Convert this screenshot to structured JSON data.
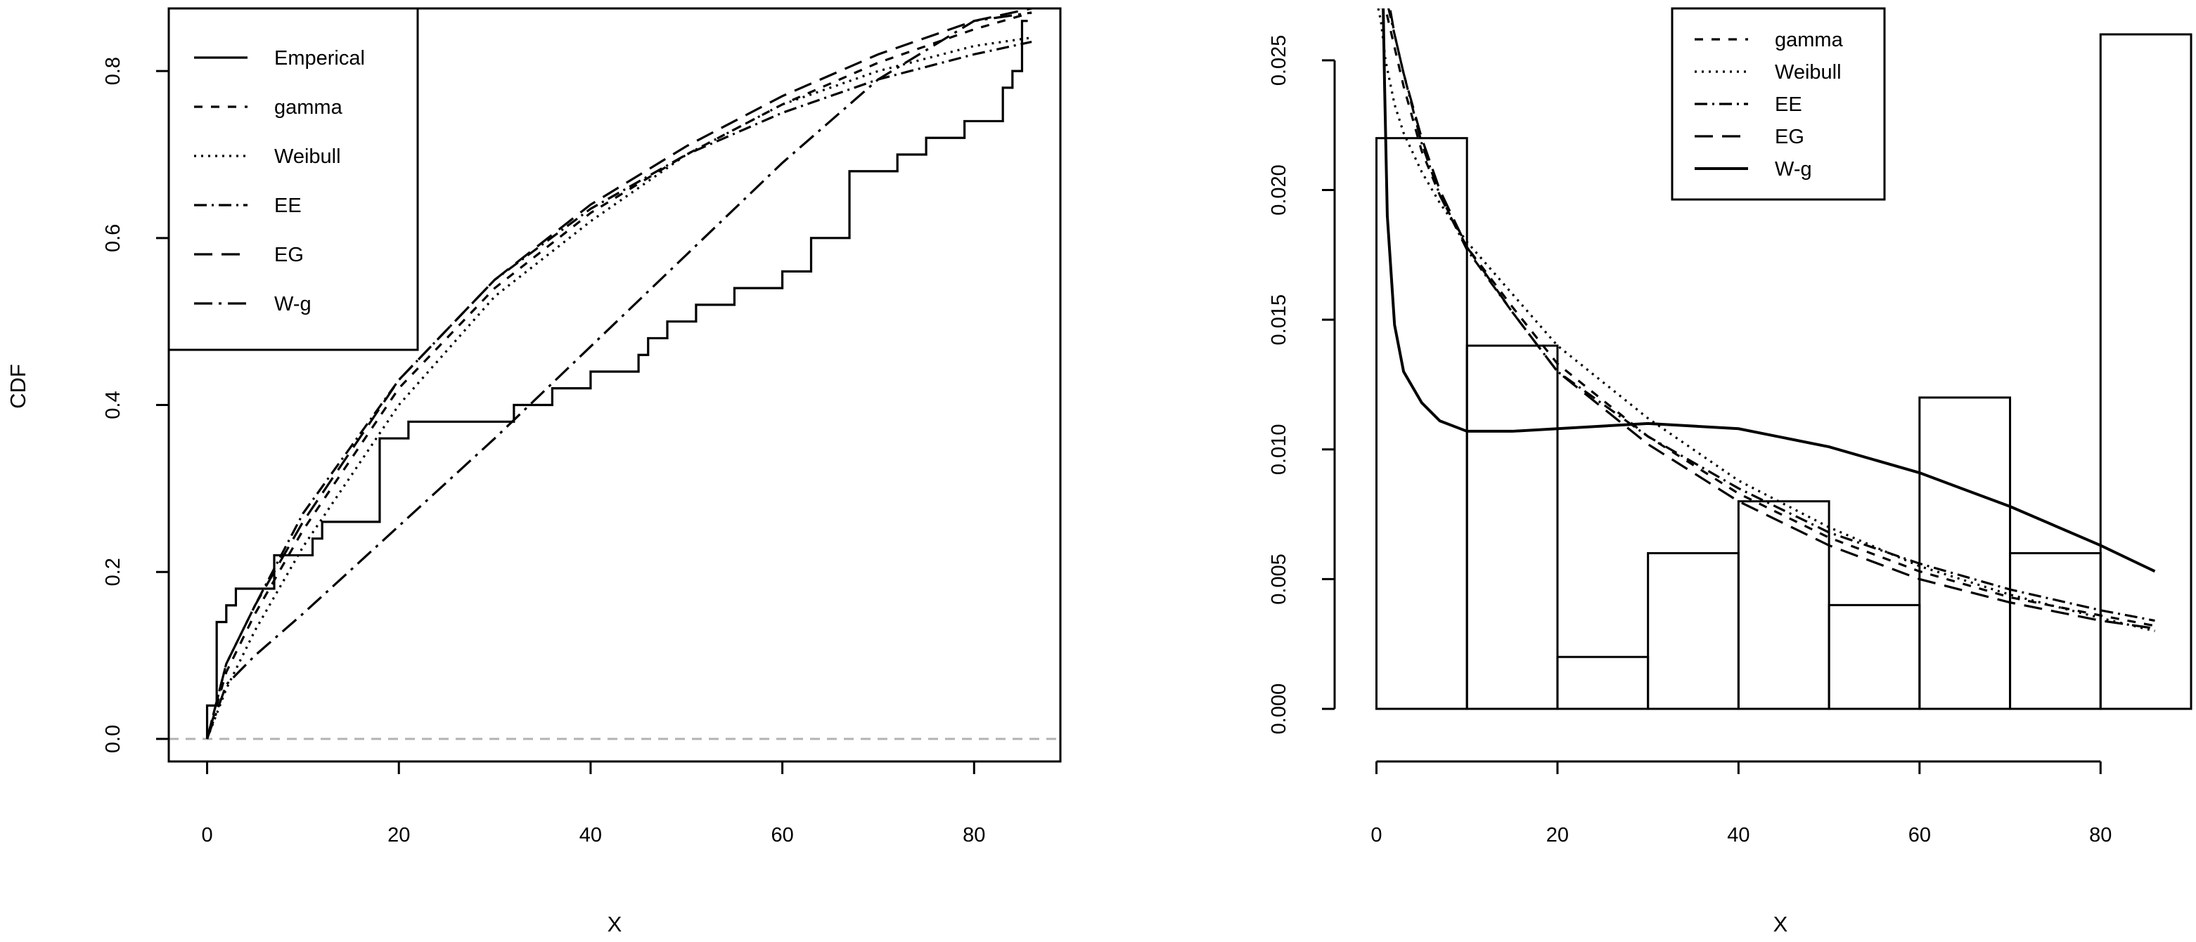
{
  "chart_data": [
    {
      "type": "line",
      "title": "",
      "xlabel": "X",
      "ylabel": "CDF",
      "xlim": [
        -4,
        89
      ],
      "ylim": [
        -0.027,
        0.875
      ],
      "xticks": [
        0,
        20,
        40,
        60,
        80
      ],
      "yticks": [
        0.0,
        0.2,
        0.4,
        0.6,
        0.8
      ],
      "xtick_labels": [
        "0",
        "20",
        "40",
        "60",
        "80"
      ],
      "ytick_labels": [
        "0.0",
        "0.2",
        "0.4",
        "0.6",
        "0.8"
      ],
      "grid": false,
      "legend_position": "top-left",
      "reference_line": {
        "y": 0,
        "style": "dashed",
        "color": "#b3b3b3"
      },
      "series": [
        {
          "name": "Emperical",
          "style": "step",
          "dash": "",
          "x": [
            0,
            1,
            2,
            3,
            7,
            11,
            12,
            18,
            21,
            32,
            36,
            40,
            45,
            46,
            48,
            51,
            55,
            60,
            63,
            67,
            72,
            75,
            79,
            83,
            84,
            85
          ],
          "y": [
            0.04,
            0.14,
            0.16,
            0.18,
            0.22,
            0.24,
            0.26,
            0.36,
            0.38,
            0.4,
            0.42,
            0.44,
            0.46,
            0.48,
            0.5,
            0.52,
            0.54,
            0.56,
            0.6,
            0.68,
            0.7,
            0.72,
            0.74,
            0.78,
            0.8,
            0.86
          ]
        },
        {
          "name": "gamma",
          "style": "line",
          "dash": "12 12",
          "x": [
            0,
            2,
            5,
            10,
            20,
            30,
            40,
            50,
            60,
            70,
            80,
            86
          ],
          "y": [
            0,
            0.08,
            0.15,
            0.25,
            0.42,
            0.54,
            0.63,
            0.7,
            0.76,
            0.81,
            0.85,
            0.87
          ]
        },
        {
          "name": "Weibull",
          "style": "line",
          "dash": "3 7",
          "x": [
            0,
            2,
            5,
            10,
            20,
            30,
            40,
            50,
            60,
            70,
            80,
            86
          ],
          "y": [
            0,
            0.06,
            0.13,
            0.23,
            0.4,
            0.53,
            0.62,
            0.7,
            0.76,
            0.8,
            0.83,
            0.84
          ]
        },
        {
          "name": "EE",
          "style": "line",
          "dash": "18 7 3 7",
          "x": [
            0,
            2,
            5,
            10,
            20,
            30,
            40,
            50,
            60,
            70,
            80,
            86
          ],
          "y": [
            0,
            0.09,
            0.16,
            0.27,
            0.43,
            0.55,
            0.635,
            0.7,
            0.75,
            0.79,
            0.82,
            0.835
          ]
        },
        {
          "name": "EG",
          "style": "line",
          "dash": "26 13",
          "x": [
            0,
            2,
            5,
            10,
            20,
            30,
            40,
            50,
            60,
            70,
            80,
            86
          ],
          "y": [
            0,
            0.09,
            0.16,
            0.26,
            0.43,
            0.55,
            0.64,
            0.71,
            0.77,
            0.82,
            0.86,
            0.875
          ]
        },
        {
          "name": "W-g",
          "style": "line",
          "dash": "26 9 4 9",
          "x": [
            0,
            2,
            5,
            10,
            20,
            30,
            40,
            50,
            60,
            70,
            80,
            86
          ],
          "y": [
            0,
            0.065,
            0.1,
            0.15,
            0.255,
            0.36,
            0.47,
            0.58,
            0.69,
            0.79,
            0.86,
            0.87
          ]
        }
      ]
    },
    {
      "type": "bar",
      "title": "",
      "xlabel": "X",
      "ylabel": "",
      "xlim": [
        -4,
        90
      ],
      "ylim": [
        -0.001,
        0.027
      ],
      "xticks": [
        0,
        20,
        40,
        60,
        80
      ],
      "yticks": [
        0.0,
        0.005,
        0.01,
        0.015,
        0.02,
        0.025
      ],
      "xtick_labels": [
        "0",
        "20",
        "40",
        "60",
        "80"
      ],
      "ytick_labels": [
        "0.000",
        "0.005",
        "0.010",
        "0.015",
        "0.020",
        "0.025"
      ],
      "grid": false,
      "legend_position": "top-center",
      "histogram": {
        "bin_edges": [
          0,
          10,
          20,
          30,
          40,
          50,
          60,
          70,
          80,
          90
        ],
        "values": [
          0.022,
          0.014,
          0.002,
          0.006,
          0.008,
          0.004,
          0.012,
          0.006,
          0.026
        ]
      },
      "series": [
        {
          "name": "gamma",
          "dash": "12 12",
          "x": [
            0.4,
            0.7,
            1,
            2,
            3,
            5,
            7,
            10,
            15,
            20,
            30,
            40,
            50,
            60,
            70,
            80,
            86
          ],
          "y": [
            0.027,
            0.0285,
            0.027,
            0.0255,
            0.024,
            0.0215,
            0.0198,
            0.0178,
            0.0155,
            0.0133,
            0.0105,
            0.0083,
            0.0066,
            0.0053,
            0.0043,
            0.0036,
            0.0032
          ]
        },
        {
          "name": "Weibull",
          "dash": "3 7",
          "x": [
            0.2,
            0.5,
            1,
            2,
            3,
            5,
            7,
            10,
            15,
            20,
            30,
            40,
            50,
            60,
            70,
            80,
            86
          ],
          "y": [
            0.027,
            0.0265,
            0.025,
            0.0233,
            0.0222,
            0.0207,
            0.0195,
            0.018,
            0.016,
            0.014,
            0.0112,
            0.0088,
            0.007,
            0.0055,
            0.0044,
            0.0035,
            0.003
          ]
        },
        {
          "name": "EE",
          "dash": "18 7 3 7",
          "x": [
            0.4,
            1,
            2,
            3,
            5,
            7,
            10,
            15,
            20,
            30,
            40,
            50,
            60,
            70,
            80,
            86
          ],
          "y": [
            0.027,
            0.0275,
            0.026,
            0.0245,
            0.0218,
            0.0198,
            0.0177,
            0.0153,
            0.013,
            0.0105,
            0.0085,
            0.0068,
            0.0056,
            0.0046,
            0.0038,
            0.0034
          ]
        },
        {
          "name": "EG",
          "dash": "26 13",
          "x": [
            0.4,
            1,
            2,
            3,
            5,
            7,
            10,
            15,
            20,
            30,
            40,
            50,
            60,
            70,
            80,
            86
          ],
          "y": [
            0.027,
            0.028,
            0.026,
            0.0245,
            0.022,
            0.02,
            0.0178,
            0.0153,
            0.013,
            0.0102,
            0.008,
            0.0063,
            0.005,
            0.0041,
            0.0034,
            0.0031
          ]
        },
        {
          "name": "W-g",
          "dash": "",
          "x": [
            0.75,
            0.9,
            1.2,
            2,
            3,
            5,
            7,
            10,
            15,
            20,
            30,
            40,
            50,
            60,
            70,
            80,
            86
          ],
          "y": [
            0.027,
            0.024,
            0.019,
            0.0148,
            0.013,
            0.0118,
            0.0111,
            0.0107,
            0.0107,
            0.0108,
            0.011,
            0.0108,
            0.0101,
            0.0091,
            0.0078,
            0.0063,
            0.0053
          ]
        }
      ]
    }
  ]
}
